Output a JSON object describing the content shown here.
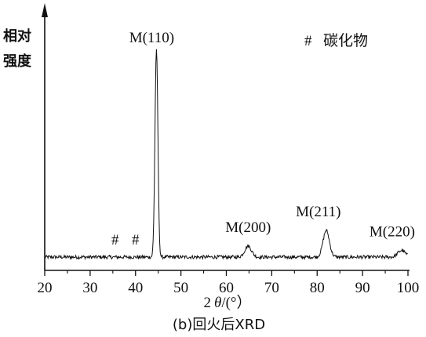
{
  "chart_data": {
    "type": "line",
    "title": "",
    "caption": "(b)回火后XRD",
    "xlabel_prefix": "2",
    "xlabel_theta": "θ",
    "xlabel_suffix": "/(°）",
    "ylabel_line1": "相对",
    "ylabel_line2": "强度",
    "xlim": [
      20,
      100
    ],
    "ylim": [
      0,
      100
    ],
    "x_ticks": [
      20,
      30,
      40,
      50,
      60,
      70,
      80,
      90,
      100
    ],
    "grid": false,
    "legend": {
      "symbol": "#",
      "text": "碳化物",
      "position": "top-right"
    },
    "baseline": 6,
    "peaks": [
      {
        "label": "M(110)",
        "x": 44.6,
        "y": 100
      },
      {
        "label": "M(200)",
        "x": 64.8,
        "y": 11
      },
      {
        "label": "M(211)",
        "x": 82.0,
        "y": 18
      },
      {
        "label": "M(220)",
        "x": 98.6,
        "y": 9
      }
    ],
    "carbide_marks": [
      {
        "label": "#",
        "x": 35.5
      },
      {
        "label": "#",
        "x": 40.0
      }
    ]
  }
}
